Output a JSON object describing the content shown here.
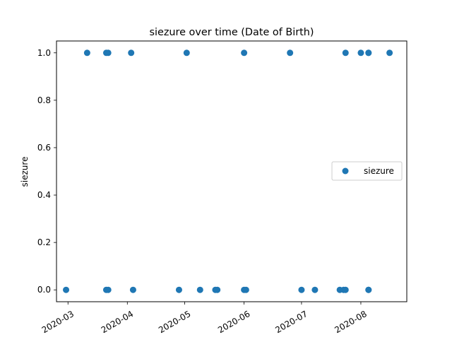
{
  "chart_data": {
    "type": "scatter",
    "title": "siezure over time (Date of Birth)",
    "xlabel": "",
    "ylabel": "siezure",
    "xlim": [
      "2020-02-24",
      "2020-08-25"
    ],
    "ylim": [
      -0.05,
      1.05
    ],
    "x_ticks": [
      {
        "date": "2020-03-01",
        "label": "2020-03"
      },
      {
        "date": "2020-04-01",
        "label": "2020-04"
      },
      {
        "date": "2020-05-01",
        "label": "2020-05"
      },
      {
        "date": "2020-06-01",
        "label": "2020-06"
      },
      {
        "date": "2020-07-01",
        "label": "2020-07"
      },
      {
        "date": "2020-08-01",
        "label": "2020-08"
      }
    ],
    "y_ticks": [
      {
        "value": 0.0,
        "label": "0.0"
      },
      {
        "value": 0.2,
        "label": "0.2"
      },
      {
        "value": 0.4,
        "label": "0.4"
      },
      {
        "value": 0.6,
        "label": "0.6"
      },
      {
        "value": 0.8,
        "label": "0.8"
      },
      {
        "value": 1.0,
        "label": "1.0"
      }
    ],
    "grid": false,
    "legend_position": "center-right",
    "series": [
      {
        "name": "siezure",
        "color": "#1f77b4",
        "points": [
          {
            "x": "2020-03-11",
            "y": 1
          },
          {
            "x": "2020-03-21",
            "y": 1
          },
          {
            "x": "2020-03-22",
            "y": 1
          },
          {
            "x": "2020-04-03",
            "y": 1
          },
          {
            "x": "2020-05-02",
            "y": 1
          },
          {
            "x": "2020-06-01",
            "y": 1
          },
          {
            "x": "2020-06-25",
            "y": 1
          },
          {
            "x": "2020-07-24",
            "y": 1
          },
          {
            "x": "2020-08-01",
            "y": 1
          },
          {
            "x": "2020-08-05",
            "y": 1
          },
          {
            "x": "2020-08-05",
            "y": 1
          },
          {
            "x": "2020-08-16",
            "y": 1
          },
          {
            "x": "2020-02-29",
            "y": 0
          },
          {
            "x": "2020-03-21",
            "y": 0
          },
          {
            "x": "2020-03-22",
            "y": 0
          },
          {
            "x": "2020-04-04",
            "y": 0
          },
          {
            "x": "2020-04-28",
            "y": 0
          },
          {
            "x": "2020-05-09",
            "y": 0
          },
          {
            "x": "2020-05-17",
            "y": 0
          },
          {
            "x": "2020-05-18",
            "y": 0
          },
          {
            "x": "2020-06-01",
            "y": 0
          },
          {
            "x": "2020-06-02",
            "y": 0
          },
          {
            "x": "2020-07-01",
            "y": 0
          },
          {
            "x": "2020-07-08",
            "y": 0
          },
          {
            "x": "2020-07-21",
            "y": 0
          },
          {
            "x": "2020-07-23",
            "y": 0
          },
          {
            "x": "2020-07-24",
            "y": 0
          },
          {
            "x": "2020-08-05",
            "y": 0
          },
          {
            "x": "2020-08-05",
            "y": 0
          }
        ]
      }
    ]
  }
}
